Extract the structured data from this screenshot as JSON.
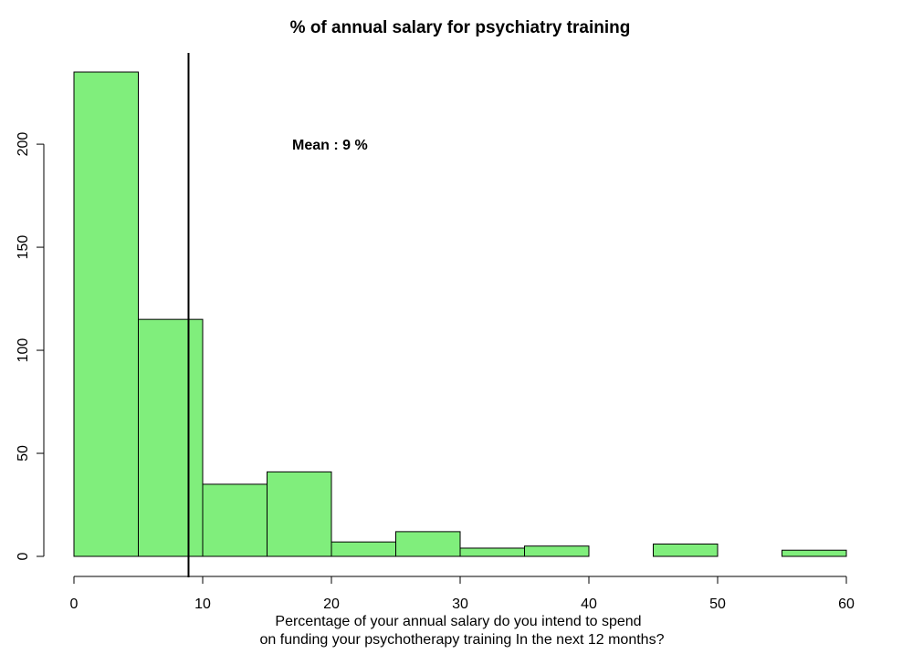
{
  "chart_data": {
    "type": "bar",
    "title": "% of annual salary for psychiatry training",
    "xlabel_lines": [
      "Percentage of your annual salary do you intend to spend",
      "on funding your psychotherapy training In the next 12 months?"
    ],
    "ylabel": "",
    "bins": [
      {
        "from": 0,
        "to": 5,
        "count": 235
      },
      {
        "from": 5,
        "to": 10,
        "count": 115
      },
      {
        "from": 10,
        "to": 15,
        "count": 35
      },
      {
        "from": 15,
        "to": 20,
        "count": 41
      },
      {
        "from": 20,
        "to": 25,
        "count": 7
      },
      {
        "from": 25,
        "to": 30,
        "count": 12
      },
      {
        "from": 30,
        "to": 35,
        "count": 4
      },
      {
        "from": 35,
        "to": 40,
        "count": 5
      },
      {
        "from": 40,
        "to": 45,
        "count": 0
      },
      {
        "from": 45,
        "to": 50,
        "count": 6
      },
      {
        "from": 50,
        "to": 55,
        "count": 0
      },
      {
        "from": 55,
        "to": 60,
        "count": 3
      }
    ],
    "xlim": [
      0,
      60
    ],
    "ylim": [
      0,
      235
    ],
    "xticks": [
      0,
      10,
      20,
      30,
      40,
      50,
      60
    ],
    "yticks": [
      0,
      50,
      100,
      150,
      200
    ],
    "mean_line_x": 8.9,
    "annotation": "Mean : 9  %",
    "bar_color": "#80ee7c",
    "grid": false
  }
}
